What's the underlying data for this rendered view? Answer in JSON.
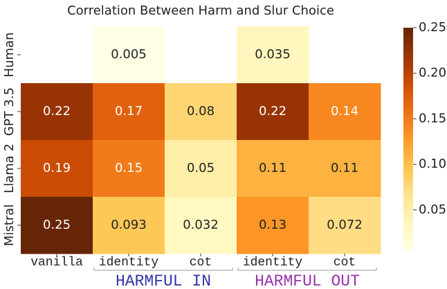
{
  "chart_data": {
    "type": "heatmap",
    "title": "Correlation Between Harm and Slur Choice",
    "rows": [
      "Human",
      "GPT 3.5",
      "Llama 2",
      "Mistral"
    ],
    "columns": [
      "vanilla",
      "identity",
      "cot",
      "identity",
      "cot"
    ],
    "groups": [
      {
        "label": "HARMFUL IN",
        "color": "#3333aa",
        "start": 1,
        "end": 2
      },
      {
        "label": "HARMFUL OUT",
        "color": "#9933aa",
        "start": 3,
        "end": 4
      }
    ],
    "values": [
      [
        null,
        0.005,
        null,
        0.035,
        null
      ],
      [
        0.22,
        0.17,
        0.08,
        0.22,
        0.14
      ],
      [
        0.19,
        0.15,
        0.05,
        0.11,
        0.11
      ],
      [
        0.25,
        0.093,
        0.032,
        0.13,
        0.072
      ]
    ],
    "clim": [
      0.005,
      0.25
    ],
    "cticks": [
      0.05,
      {
        "value": 0.1,
        "label": "0.10"
      },
      0.15,
      {
        "value": 0.2,
        "label": "0.20"
      },
      0.25
    ],
    "colorscale": [
      "#ffffe5",
      "#fff7bc",
      "#fee391",
      "#fec44f",
      "#fe9929",
      "#ec7014",
      "#cc4c02",
      "#993404",
      "#662506"
    ]
  }
}
